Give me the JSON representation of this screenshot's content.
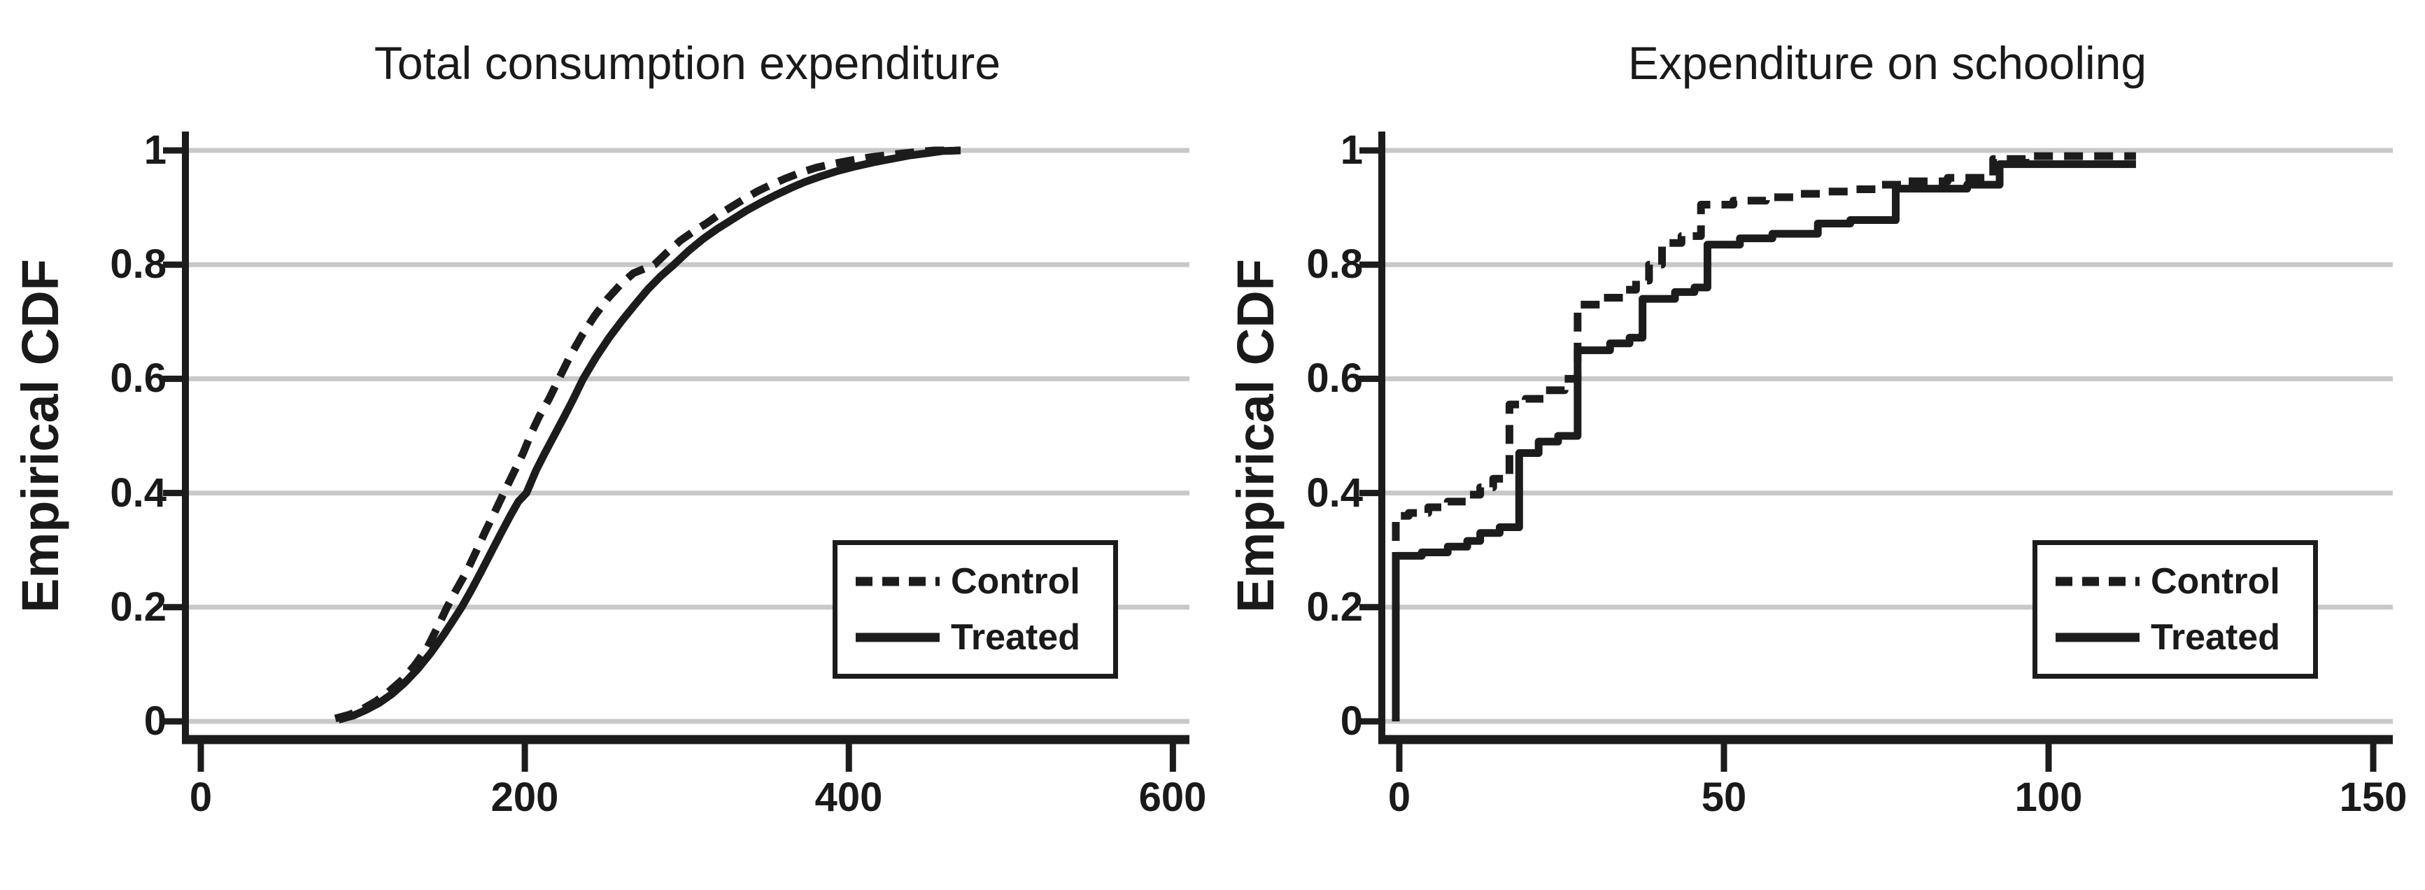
{
  "figure": {
    "background": "#ffffff",
    "text_color": "#1a1a1a",
    "line_color": "#1c1c1c",
    "grid_color": "#c8c8c8",
    "ylabel": "Empirical CDF",
    "legend": {
      "control_label": "Control",
      "treated_label": "Treated"
    }
  },
  "chart_data": [
    {
      "type": "line",
      "title": "Total consumption expenditure",
      "xlabel": "",
      "ylabel": "Empirical CDF",
      "xlim": [
        0,
        600
      ],
      "ylim": [
        0,
        1
      ],
      "x_ticks": [
        0,
        200,
        400,
        600
      ],
      "y_ticks": [
        0,
        0.2,
        0.4,
        0.6,
        0.8,
        1
      ],
      "grid": "horizontal",
      "legend_position": "lower right",
      "series": [
        {
          "name": "Control",
          "style": "dashed",
          "points": [
            [
              83,
              0.005
            ],
            [
              92,
              0.012
            ],
            [
              100,
              0.022
            ],
            [
              108,
              0.035
            ],
            [
              116,
              0.052
            ],
            [
              124,
              0.072
            ],
            [
              132,
              0.098
            ],
            [
              140,
              0.13
            ],
            [
              147,
              0.17
            ],
            [
              152,
              0.2
            ],
            [
              158,
              0.232
            ],
            [
              164,
              0.262
            ],
            [
              170,
              0.298
            ],
            [
              176,
              0.335
            ],
            [
              182,
              0.37
            ],
            [
              187,
              0.4
            ],
            [
              193,
              0.435
            ],
            [
              199,
              0.47
            ],
            [
              204,
              0.505
            ],
            [
              209,
              0.535
            ],
            [
              215,
              0.565
            ],
            [
              221,
              0.6
            ],
            [
              228,
              0.64
            ],
            [
              235,
              0.675
            ],
            [
              243,
              0.71
            ],
            [
              251,
              0.74
            ],
            [
              259,
              0.765
            ],
            [
              267,
              0.785
            ],
            [
              280,
              0.8
            ],
            [
              288,
              0.822
            ],
            [
              296,
              0.842
            ],
            [
              304,
              0.858
            ],
            [
              312,
              0.872
            ],
            [
              320,
              0.888
            ],
            [
              328,
              0.902
            ],
            [
              336,
              0.916
            ],
            [
              344,
              0.929
            ],
            [
              352,
              0.94
            ],
            [
              361,
              0.951
            ],
            [
              370,
              0.961
            ],
            [
              380,
              0.97
            ],
            [
              391,
              0.977
            ],
            [
              402,
              0.983
            ],
            [
              413,
              0.988
            ],
            [
              424,
              0.992
            ],
            [
              434,
              0.995
            ],
            [
              444,
              0.998
            ],
            [
              453,
              1
            ],
            [
              469,
              1
            ]
          ]
        },
        {
          "name": "Treated",
          "style": "solid",
          "points": [
            [
              85,
              0.003
            ],
            [
              94,
              0.01
            ],
            [
              102,
              0.02
            ],
            [
              110,
              0.032
            ],
            [
              118,
              0.048
            ],
            [
              126,
              0.068
            ],
            [
              134,
              0.092
            ],
            [
              142,
              0.12
            ],
            [
              150,
              0.152
            ],
            [
              156,
              0.178
            ],
            [
              161,
              0.2
            ],
            [
              167,
              0.23
            ],
            [
              173,
              0.262
            ],
            [
              179,
              0.295
            ],
            [
              185,
              0.328
            ],
            [
              191,
              0.36
            ],
            [
              196,
              0.385
            ],
            [
              201,
              0.4
            ],
            [
              207,
              0.44
            ],
            [
              212,
              0.468
            ],
            [
              218,
              0.5
            ],
            [
              224,
              0.532
            ],
            [
              230,
              0.565
            ],
            [
              236,
              0.6
            ],
            [
              244,
              0.638
            ],
            [
              252,
              0.672
            ],
            [
              260,
              0.702
            ],
            [
              268,
              0.73
            ],
            [
              276,
              0.757
            ],
            [
              284,
              0.78
            ],
            [
              292,
              0.8
            ],
            [
              301,
              0.824
            ],
            [
              310,
              0.845
            ],
            [
              319,
              0.863
            ],
            [
              328,
              0.879
            ],
            [
              337,
              0.895
            ],
            [
              346,
              0.909
            ],
            [
              355,
              0.922
            ],
            [
              364,
              0.934
            ],
            [
              373,
              0.945
            ],
            [
              383,
              0.955
            ],
            [
              393,
              0.964
            ],
            [
              404,
              0.972
            ],
            [
              415,
              0.979
            ],
            [
              426,
              0.985
            ],
            [
              437,
              0.991
            ],
            [
              448,
              0.995
            ],
            [
              458,
              0.999
            ],
            [
              469,
              1
            ]
          ]
        }
      ]
    },
    {
      "type": "step",
      "title": "Expenditure on schooling",
      "xlabel": "",
      "ylabel": "Empirical CDF",
      "xlim": [
        0,
        150
      ],
      "ylim": [
        0,
        1
      ],
      "x_ticks": [
        0,
        50,
        100,
        150
      ],
      "y_ticks": [
        0,
        0.2,
        0.4,
        0.6,
        0.8,
        1
      ],
      "grid": "horizontal",
      "legend_position": "lower right",
      "series": [
        {
          "name": "Control",
          "style": "dashed",
          "points": [
            [
              0,
              0.36
            ],
            [
              2,
              0.365
            ],
            [
              5,
              0.375
            ],
            [
              8,
              0.385
            ],
            [
              11,
              0.397
            ],
            [
              13,
              0.41
            ],
            [
              15,
              0.425
            ],
            [
              17.5,
              0.555
            ],
            [
              20,
              0.565
            ],
            [
              23,
              0.58
            ],
            [
              26,
              0.6
            ],
            [
              28,
              0.73
            ],
            [
              32,
              0.742
            ],
            [
              35,
              0.756
            ],
            [
              37,
              0.772
            ],
            [
              39,
              0.8
            ],
            [
              41,
              0.838
            ],
            [
              44,
              0.85
            ],
            [
              47,
              0.905
            ],
            [
              52,
              0.912
            ],
            [
              57,
              0.918
            ],
            [
              62,
              0.924
            ],
            [
              66,
              0.928
            ],
            [
              70,
              0.932
            ],
            [
              74,
              0.94
            ],
            [
              78,
              0.946
            ],
            [
              85,
              0.952
            ],
            [
              92,
              0.985
            ],
            [
              97,
              0.99
            ],
            [
              114,
              0.99
            ]
          ]
        },
        {
          "name": "Treated",
          "style": "solid",
          "points": [
            [
              0,
              0.29
            ],
            [
              4,
              0.296
            ],
            [
              8,
              0.306
            ],
            [
              11,
              0.316
            ],
            [
              13,
              0.33
            ],
            [
              16,
              0.34
            ],
            [
              19,
              0.47
            ],
            [
              22,
              0.49
            ],
            [
              25,
              0.5
            ],
            [
              28,
              0.65
            ],
            [
              33,
              0.662
            ],
            [
              36,
              0.672
            ],
            [
              38,
              0.74
            ],
            [
              43,
              0.752
            ],
            [
              46,
              0.76
            ],
            [
              48,
              0.835
            ],
            [
              53,
              0.846
            ],
            [
              58,
              0.854
            ],
            [
              65,
              0.872
            ],
            [
              70,
              0.878
            ],
            [
              77,
              0.933
            ],
            [
              88,
              0.94
            ],
            [
              93,
              0.976
            ],
            [
              114,
              0.976
            ]
          ]
        }
      ]
    }
  ]
}
